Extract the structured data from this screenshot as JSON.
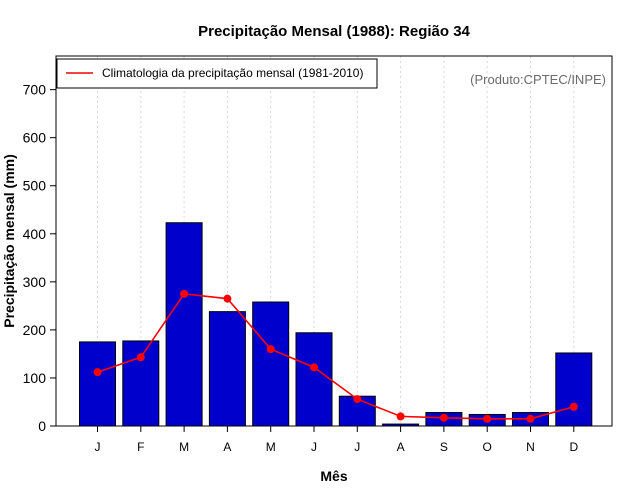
{
  "chart_data": {
    "type": "bar",
    "title": "Precipitação Mensal (1988): Região 34",
    "xlabel": "Mês",
    "ylabel": "Precipitação mensal (mm)",
    "ylim": [
      0,
      770
    ],
    "yticks": [
      0,
      100,
      200,
      300,
      400,
      500,
      600,
      700
    ],
    "categories": [
      "J",
      "F",
      "M",
      "A",
      "M",
      "J",
      "J",
      "A",
      "S",
      "O",
      "N",
      "D"
    ],
    "series": [
      {
        "name": "Precipitação mensal (1988)",
        "type": "bar",
        "color": "#0000cd",
        "values": [
          175,
          177,
          423,
          238,
          258,
          194,
          62,
          4,
          28,
          24,
          28,
          152
        ]
      },
      {
        "name": "Climatologia da precipitação mensal (1981-2010)",
        "type": "line",
        "color": "#ff0000",
        "values": [
          112,
          143,
          275,
          265,
          160,
          122,
          56,
          20,
          17,
          15,
          15,
          40
        ]
      }
    ],
    "legend": {
      "position": "top-left",
      "label": "Climatologia da precipitação mensal (1981-2010)"
    },
    "annotation": "(Produto:CPTEC/INPE)",
    "grid": "vertical dotted"
  }
}
